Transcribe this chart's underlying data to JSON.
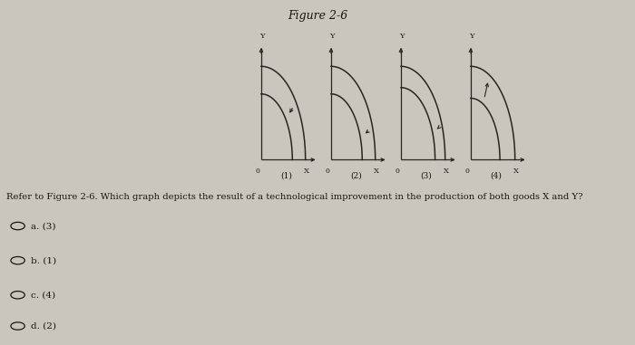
{
  "title": "Figure 2-6",
  "title_fontsize": 9,
  "background_color": "#cac6be",
  "panels": [
    "(1)",
    "(2)",
    "(3)",
    "(4)"
  ],
  "panel_descriptions": [
    "inward_arrow_middle",
    "inward_arrow_xaxis",
    "inward_arrow_xaxis_small",
    "outward_both"
  ],
  "text_question": "Refer to Figure 2-6. Which graph depicts the result of a technological improvement in the production of both goods X and Y?",
  "choices": [
    "a. (3)",
    "b. (1)",
    "c. (4)",
    "d. (2)"
  ],
  "axis_label_x": "X",
  "axis_label_y": "Y",
  "origin_label": "0",
  "curve_color": "#2a2520",
  "arrow_color": "#2a2520",
  "text_color": "#1a1510"
}
